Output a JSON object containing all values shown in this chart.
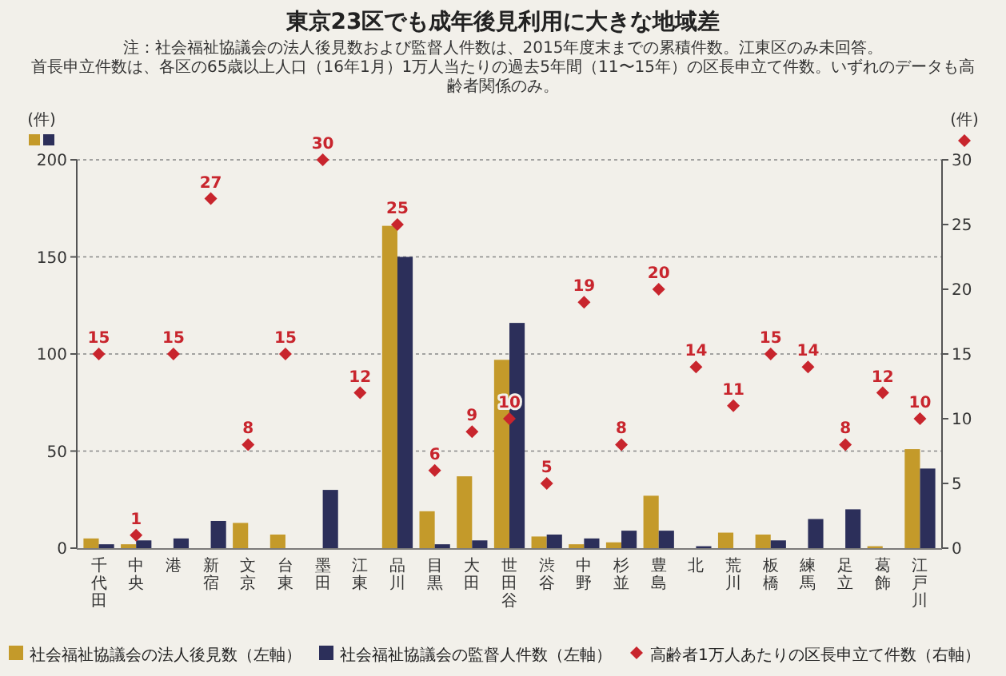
{
  "chart_data": {
    "type": "bar",
    "title": "東京23区でも成年後見利用に大きな地域差",
    "annotations": [
      "注：社会福祉協議会の法人後見数および監督人件数は、2015年度末までの累積件数。江東区のみ未回答。",
      "首長申立件数は、各区の65歳以上人口（16年1月）1万人当たりの過去5年間（11〜15年）の区長申立て件数。いずれのデータも高齢者関係のみ。"
    ],
    "ylabel": "(件)",
    "y2label": "(件)",
    "categories": [
      "千代田",
      "中央",
      "港",
      "新宿",
      "文京",
      "台東",
      "墨田",
      "江東",
      "品川",
      "目黒",
      "大田",
      "世田谷",
      "渋谷",
      "中野",
      "杉並",
      "豊島",
      "北",
      "荒川",
      "板橋",
      "練馬",
      "足立",
      "葛飾",
      "江戸川"
    ],
    "series": [
      {
        "name": "社会福祉協議会の法人後見数（左軸）",
        "color": "#c49a2a",
        "values": [
          5,
          2,
          0,
          0,
          13,
          7,
          0,
          null,
          166,
          19,
          37,
          97,
          6,
          2,
          3,
          27,
          0,
          8,
          7,
          0,
          0,
          1,
          51
        ]
      },
      {
        "name": "社会福祉協議会の監督人件数（左軸）",
        "color": "#2c2f5a",
        "values": [
          2,
          4,
          5,
          14,
          0,
          0,
          30,
          null,
          150,
          2,
          4,
          116,
          7,
          5,
          9,
          9,
          1,
          0,
          4,
          15,
          20,
          0,
          41
        ]
      },
      {
        "name": "高齢者1万人あたりの区長申立て件数（右軸）",
        "type": "scatter",
        "axis": "y2",
        "marker": "diamond",
        "color": "#c8252d",
        "values": [
          15,
          1,
          15,
          27,
          8,
          15,
          30,
          12,
          25,
          6,
          9,
          10,
          5,
          19,
          8,
          20,
          14,
          11,
          15,
          14,
          8,
          12,
          10
        ],
        "value_labels": [
          "15",
          "1",
          "15",
          "27",
          "8",
          "15",
          "30",
          "12",
          "25",
          "6",
          "9",
          "10",
          "5",
          "19",
          "8",
          "20",
          "14",
          "11",
          "15",
          "14",
          "8",
          "12",
          "10"
        ]
      }
    ],
    "ylim": [
      0,
      200
    ],
    "yticks": [
      0,
      50,
      100,
      150,
      200
    ],
    "y2lim": [
      0,
      30
    ],
    "y2ticks": [
      0,
      5,
      10,
      15,
      20,
      25,
      30
    ],
    "grid": "y",
    "legend": "bottom"
  }
}
